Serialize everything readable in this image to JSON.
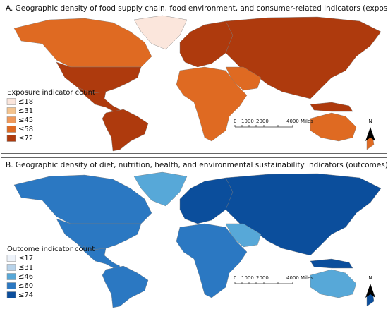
{
  "panels": [
    {
      "title": "A. Geographic density of food supply chain, food environment, and consumer-related indicators (exposures)",
      "legend": {
        "title": "Exposure indicator count",
        "items": [
          {
            "label": "≤18",
            "color": "#fbe6dc"
          },
          {
            "label": "≤31",
            "color": "#f4c48f"
          },
          {
            "label": "≤45",
            "color": "#f0995a"
          },
          {
            "label": "≤58",
            "color": "#df6a22"
          },
          {
            "label": "≤72",
            "color": "#ae3a0d"
          }
        ]
      },
      "scale_labels": [
        "0",
        "1000",
        "2000",
        "4000 Miles"
      ],
      "north": "N"
    },
    {
      "title": "B. Geographic density of diet, nutrition, health, and environmental sustainability indicators (outcomes)",
      "legend": {
        "title": "Outcome indicator count",
        "items": [
          {
            "label": "≤17",
            "color": "#eef3fa"
          },
          {
            "label": "≤31",
            "color": "#b8d3ea"
          },
          {
            "label": "≤46",
            "color": "#57a8d8"
          },
          {
            "label": "≤60",
            "color": "#2b78c2"
          },
          {
            "label": "≤74",
            "color": "#0b4e9c"
          }
        ]
      },
      "scale_labels": [
        "0",
        "1000",
        "2000",
        "4000 Miles"
      ],
      "north": "N"
    }
  ]
}
